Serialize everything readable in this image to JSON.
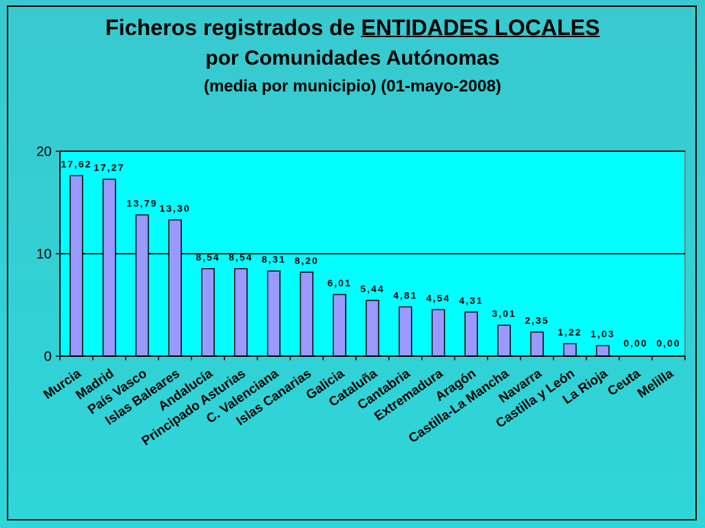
{
  "title": {
    "line1_prefix": "Ficheros registrados de ",
    "line1_emphasis": "ENTIDADES LOCALES",
    "line2": "por Comunidades Autónomas",
    "line3": "(media por municipio) (01-mayo-2008)"
  },
  "chart_data": {
    "type": "bar",
    "title": "Ficheros registrados de ENTIDADES LOCALES por Comunidades Autónomas",
    "subtitle": "(media por municipio) (01-mayo-2008)",
    "xlabel": "",
    "ylabel": "",
    "ylim": [
      0,
      20
    ],
    "yticks": [
      0,
      10,
      20
    ],
    "grid": "horizontal",
    "legend": "none",
    "categories": [
      "Murcia",
      "Madrid",
      "País Vasco",
      "Islas Baleares",
      "Andalucía",
      "Principado Asturias",
      "C. Valenciana",
      "Islas Canarias",
      "Galicia",
      "Cataluña",
      "Cantabria",
      "Extremadura",
      "Aragón",
      "Castilla-La Mancha",
      "Navarra",
      "Castilla y León",
      "La Rioja",
      "Ceuta",
      "Melilla"
    ],
    "values": [
      17.62,
      17.27,
      13.79,
      13.3,
      8.54,
      8.54,
      8.31,
      8.2,
      6.01,
      5.44,
      4.81,
      4.54,
      4.31,
      3.01,
      2.35,
      1.22,
      1.03,
      0.0,
      0.0
    ],
    "data_labels": [
      "17,62",
      "17,27",
      "13,79",
      "13,30",
      "8,54",
      "8,54",
      "8,31",
      "8,20",
      "6,01",
      "5,44",
      "4,81",
      "4,54",
      "4,31",
      "3,01",
      "2,35",
      "1,22",
      "1,03",
      "0,00",
      "0,00"
    ],
    "colors": {
      "plot_background": "#00ffff",
      "bar_fill": "#9999ff",
      "bar_stroke": "#000000",
      "slide_background": "#33cccc"
    }
  }
}
